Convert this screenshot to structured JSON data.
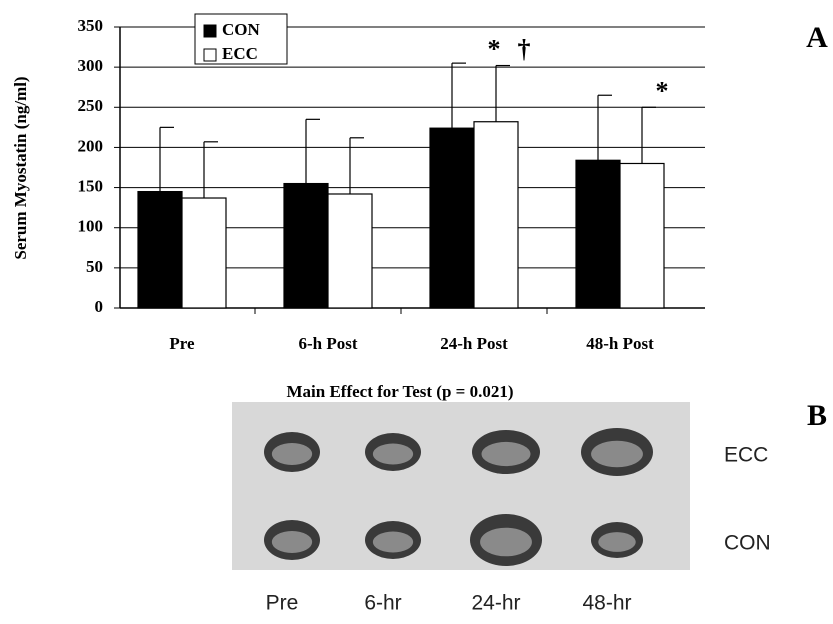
{
  "chart_data": {
    "type": "bar",
    "y_label": "Serum Myostatin (ng/ml)",
    "subtitle": "Main Effect for Test (p = 0.021)",
    "categories": [
      "Pre",
      "6-h Post",
      "24-h Post",
      "48-h Post"
    ],
    "series": [
      {
        "name": "CON",
        "color": "#000000",
        "values": [
          145,
          155,
          224,
          184
        ],
        "errors": [
          80,
          80,
          81,
          81
        ]
      },
      {
        "name": "ECC",
        "color": "#ffffff",
        "values": [
          137,
          142,
          232,
          180
        ],
        "errors": [
          70,
          70,
          70,
          70
        ]
      }
    ],
    "ylim": [
      0,
      350
    ],
    "yticks": [
      0,
      50,
      100,
      150,
      200,
      250,
      300,
      350
    ],
    "grid": true,
    "legend": "upper left",
    "annotations": [
      "*",
      "†",
      "*"
    ]
  },
  "panel_labels": [
    "A",
    "B"
  ],
  "blot": {
    "row_labels": [
      "ECC",
      "CON"
    ],
    "column_labels": [
      "Pre",
      "6-hr",
      "24-hr",
      "48-hr"
    ]
  }
}
